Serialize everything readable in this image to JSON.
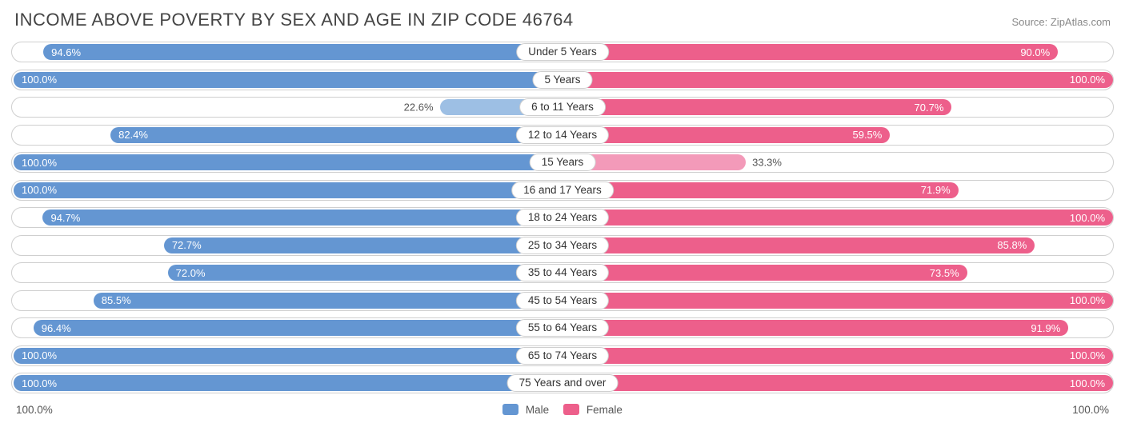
{
  "title": "INCOME ABOVE POVERTY BY SEX AND AGE IN ZIP CODE 46764",
  "source": "Source: ZipAtlas.com",
  "chart": {
    "type": "diverging-bar",
    "male_color": "#6496d2",
    "female_color": "#ed5f8b",
    "male_color_light": "#9dbfe4",
    "female_color_light": "#f39ab9",
    "track_border": "#cfcfcf",
    "track_bg": "#ffffff",
    "label_inside_threshold": 50,
    "axis_min_label": "100.0%",
    "axis_max_label": "100.0%",
    "legend": {
      "male": "Male",
      "female": "Female"
    },
    "categories": [
      {
        "label": "Under 5 Years",
        "male": 94.6,
        "female": 90.0
      },
      {
        "label": "5 Years",
        "male": 100.0,
        "female": 100.0
      },
      {
        "label": "6 to 11 Years",
        "male": 22.6,
        "female": 70.7
      },
      {
        "label": "12 to 14 Years",
        "male": 82.4,
        "female": 59.5
      },
      {
        "label": "15 Years",
        "male": 100.0,
        "female": 33.3
      },
      {
        "label": "16 and 17 Years",
        "male": 100.0,
        "female": 71.9
      },
      {
        "label": "18 to 24 Years",
        "male": 94.7,
        "female": 100.0
      },
      {
        "label": "25 to 34 Years",
        "male": 72.7,
        "female": 85.8
      },
      {
        "label": "35 to 44 Years",
        "male": 72.0,
        "female": 73.5
      },
      {
        "label": "45 to 54 Years",
        "male": 85.5,
        "female": 100.0
      },
      {
        "label": "55 to 64 Years",
        "male": 96.4,
        "female": 91.9
      },
      {
        "label": "65 to 74 Years",
        "male": 100.0,
        "female": 100.0
      },
      {
        "label": "75 Years and over",
        "male": 100.0,
        "female": 100.0
      }
    ]
  }
}
